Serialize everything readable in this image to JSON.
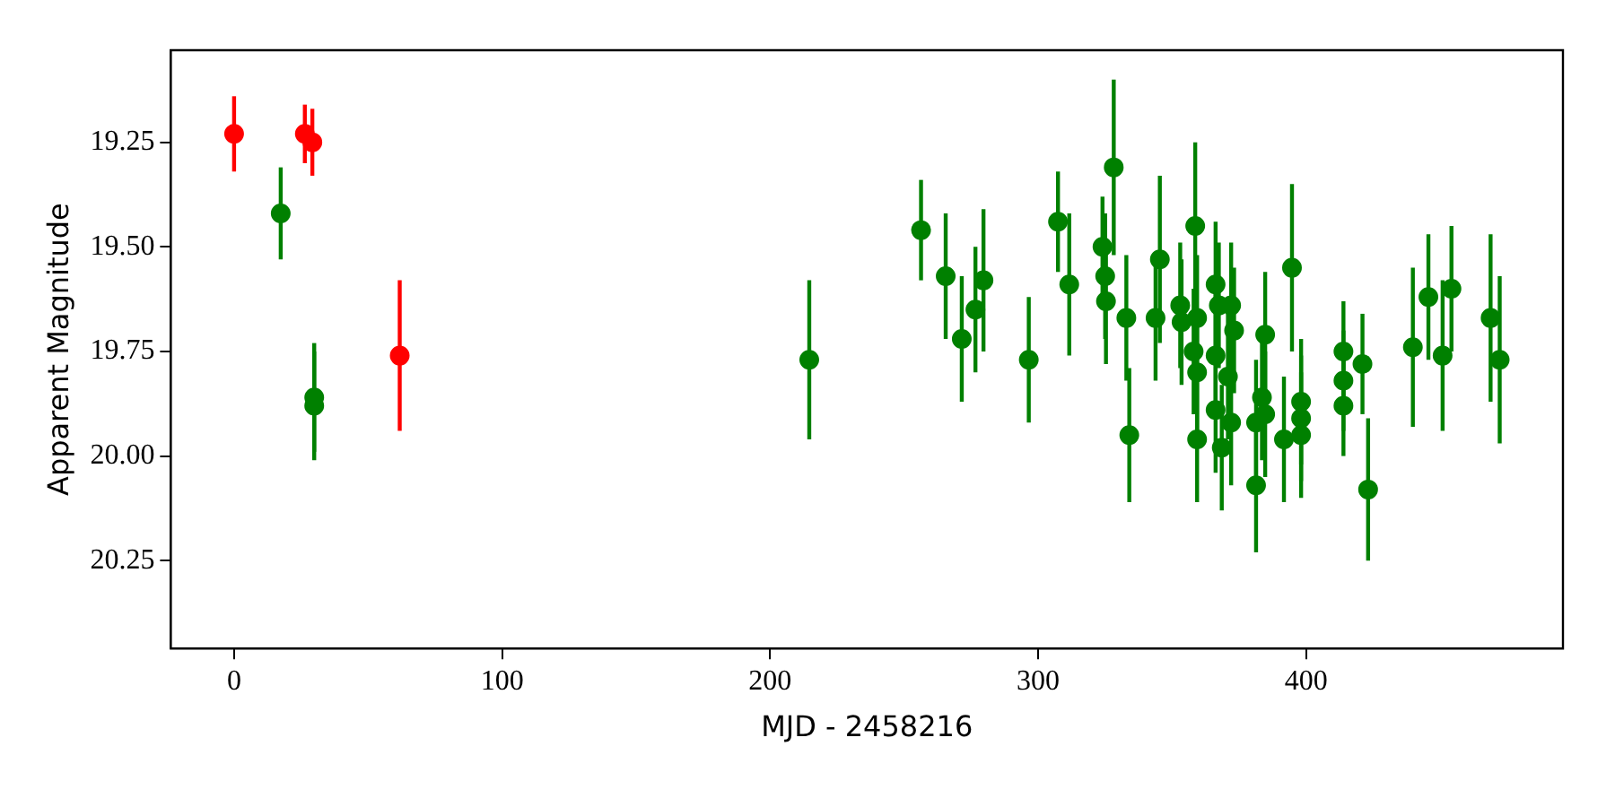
{
  "chart_data": {
    "type": "scatter",
    "xlabel": "MJD - 2458216",
    "ylabel": "Apparent Magnitude",
    "xlim": [
      -23.6,
      495.8
    ],
    "xticks": [
      0,
      100,
      200,
      300,
      400
    ],
    "ylim": [
      20.46,
      19.03
    ],
    "yticks": [
      19.25,
      {
        "value": 19.5,
        "label": "19.50"
      },
      19.75,
      {
        "value": 20.0,
        "label": "20.00"
      },
      20.25
    ],
    "grid": false,
    "legend": false,
    "marker": "circle",
    "series": [
      {
        "color": "#ff0000",
        "x": [
          0,
          26.4,
          29.2,
          61.8
        ],
        "values": [
          19.23,
          19.23,
          19.25,
          19.76
        ],
        "errors": [
          0.09,
          0.07,
          0.08,
          0.18
        ]
      },
      {
        "color": "#008000",
        "x": [
          17.4,
          29.9,
          29.9,
          214.6,
          256.3,
          265.5,
          271.5,
          276.6,
          279.6,
          296.5,
          307.4,
          311.6,
          328.2,
          324,
          325,
          325.3,
          332.9,
          334,
          345.4,
          343.8,
          358.6,
          353,
          353.5,
          359.3,
          358,
          359.3,
          359.3,
          366.2,
          367.4,
          372,
          373.1,
          366.2,
          370.8,
          366.2,
          372,
          368.5,
          384.7,
          383.5,
          381.3,
          384.7,
          381.3,
          394.7,
          391.7,
          398.1,
          398.1,
          398.1,
          413.9,
          413.9,
          413.9,
          421,
          423.1,
          439.8,
          445.6,
          450.9,
          454.2,
          468.8,
          472.2
        ],
        "values": [
          19.42,
          19.86,
          19.88,
          19.77,
          19.46,
          19.57,
          19.72,
          19.65,
          19.58,
          19.77,
          19.44,
          19.59,
          19.31,
          19.5,
          19.57,
          19.63,
          19.67,
          19.95,
          19.53,
          19.67,
          19.45,
          19.64,
          19.68,
          19.67,
          19.75,
          19.8,
          19.96,
          19.59,
          19.64,
          19.64,
          19.7,
          19.76,
          19.81,
          19.89,
          19.92,
          19.98,
          19.71,
          19.86,
          19.92,
          19.9,
          20.07,
          19.55,
          19.96,
          19.87,
          19.91,
          19.95,
          19.75,
          19.82,
          19.88,
          19.78,
          20.08,
          19.74,
          19.62,
          19.76,
          19.6,
          19.67,
          19.77
        ],
        "errors": [
          0.11,
          0.13,
          0.13,
          0.19,
          0.12,
          0.15,
          0.15,
          0.15,
          0.17,
          0.15,
          0.12,
          0.17,
          0.21,
          0.12,
          0.15,
          0.15,
          0.15,
          0.16,
          0.2,
          0.15,
          0.2,
          0.15,
          0.15,
          0.15,
          0.15,
          0.15,
          0.15,
          0.15,
          0.15,
          0.15,
          0.15,
          0.15,
          0.15,
          0.15,
          0.15,
          0.15,
          0.15,
          0.15,
          0.15,
          0.15,
          0.16,
          0.2,
          0.15,
          0.15,
          0.15,
          0.15,
          0.12,
          0.12,
          0.12,
          0.12,
          0.17,
          0.19,
          0.15,
          0.18,
          0.15,
          0.2,
          0.2
        ]
      }
    ]
  }
}
